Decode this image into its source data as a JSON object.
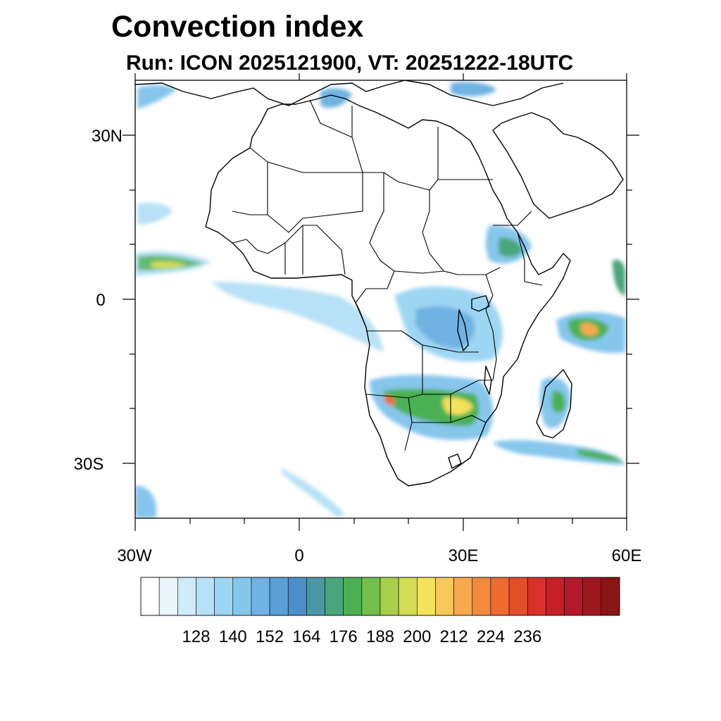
{
  "title": "Convection index",
  "subtitle": "Run: ICON 2025121900,  VT: 20251222-18UTC",
  "map": {
    "lon_range": [
      -30,
      60
    ],
    "lat_range": [
      -40,
      40
    ],
    "lat_labels": [
      "30N",
      "0",
      "30S"
    ],
    "lon_labels": [
      "30W",
      "0",
      "30E",
      "60E"
    ]
  },
  "legend": {
    "colors": [
      "#ffffff",
      "#eaf5fc",
      "#d0ebf8",
      "#b7e1f6",
      "#9dd6f3",
      "#86c6ec",
      "#70b2e2",
      "#5a9fd6",
      "#4b8fc8",
      "#4a98a5",
      "#4aa57b",
      "#4cb053",
      "#73bf4a",
      "#a7cf4a",
      "#d3dc53",
      "#f2e25c",
      "#f8c85a",
      "#f8a84e",
      "#f28a3e",
      "#ed6a30",
      "#e44d2a",
      "#d93029",
      "#c71f2a",
      "#b3192a",
      "#9e1820",
      "#8a1515"
    ],
    "tick_labels": [
      "128",
      "140",
      "152",
      "164",
      "176",
      "188",
      "200",
      "212",
      "224",
      "236"
    ],
    "tick_values": [
      128,
      140,
      152,
      164,
      176,
      188,
      200,
      212,
      224,
      236
    ]
  }
}
